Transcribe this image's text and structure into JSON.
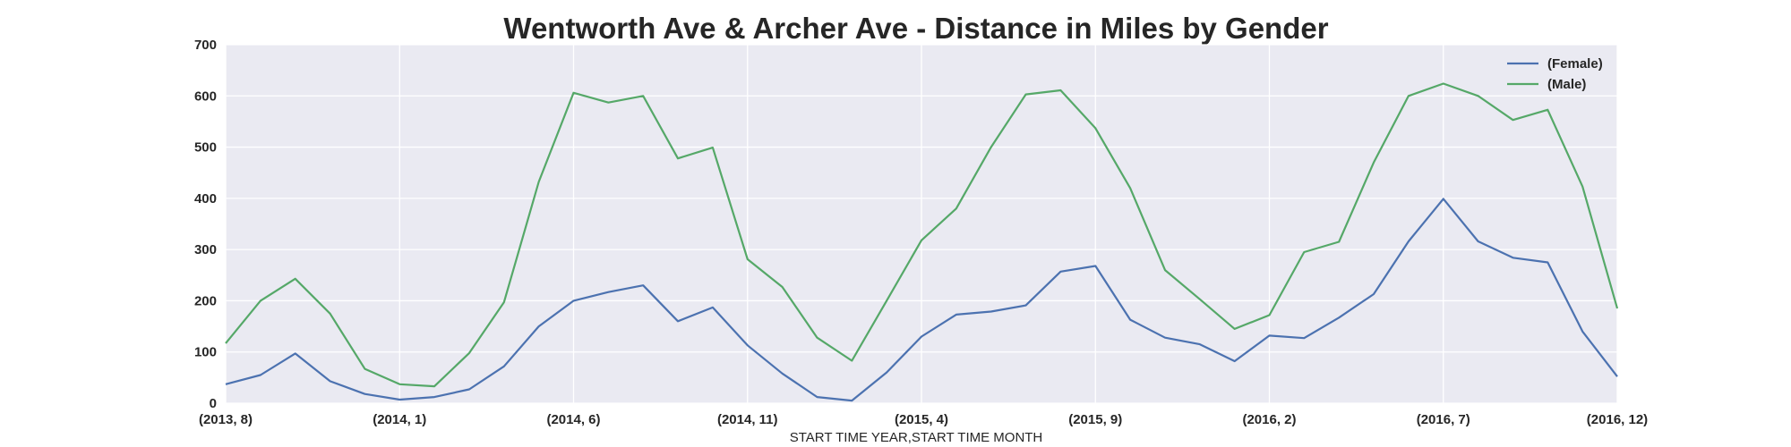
{
  "chart_data": {
    "type": "line",
    "title": "Wentworth Ave & Archer Ave - Distance in Miles by Gender",
    "xlabel": "START TIME YEAR,START TIME MONTH",
    "ylabel": "",
    "ylim": [
      0,
      700
    ],
    "yticks": [
      0,
      100,
      200,
      300,
      400,
      500,
      600,
      700
    ],
    "x": [
      "(2013, 8)",
      "(2013, 9)",
      "(2013, 10)",
      "(2013, 11)",
      "(2013, 12)",
      "(2014, 1)",
      "(2014, 2)",
      "(2014, 3)",
      "(2014, 4)",
      "(2014, 5)",
      "(2014, 6)",
      "(2014, 7)",
      "(2014, 8)",
      "(2014, 9)",
      "(2014, 10)",
      "(2014, 11)",
      "(2014, 12)",
      "(2015, 1)",
      "(2015, 2)",
      "(2015, 3)",
      "(2015, 4)",
      "(2015, 5)",
      "(2015, 6)",
      "(2015, 7)",
      "(2015, 8)",
      "(2015, 9)",
      "(2015, 10)",
      "(2015, 11)",
      "(2015, 12)",
      "(2016, 1)",
      "(2016, 2)",
      "(2016, 3)",
      "(2016, 4)",
      "(2016, 5)",
      "(2016, 6)",
      "(2016, 7)",
      "(2016, 8)",
      "(2016, 9)",
      "(2016, 10)",
      "(2016, 11)",
      "(2016, 12)"
    ],
    "xtick_labels": [
      "(2013, 8)",
      "(2014, 1)",
      "(2014, 6)",
      "(2014, 11)",
      "(2015, 4)",
      "(2015, 9)",
      "(2016, 2)",
      "(2016, 7)",
      "(2016, 12)"
    ],
    "series": [
      {
        "name": "(Female)",
        "color": "#4c72b0",
        "values": [
          37,
          55,
          97,
          43,
          18,
          7,
          12,
          27,
          72,
          150,
          200,
          217,
          230,
          160,
          187,
          113,
          58,
          12,
          5,
          60,
          130,
          173,
          179,
          191,
          257,
          268,
          163,
          128,
          115,
          82,
          132,
          127,
          167,
          213,
          316,
          399,
          316,
          284,
          275,
          140,
          52
        ]
      },
      {
        "name": "(Male)",
        "color": "#55a868",
        "values": [
          117,
          200,
          243,
          175,
          67,
          37,
          33,
          98,
          197,
          432,
          606,
          587,
          600,
          478,
          499,
          281,
          227,
          128,
          83,
          200,
          318,
          380,
          500,
          603,
          611,
          537,
          420,
          260,
          203,
          145,
          172,
          295,
          315,
          470,
          600,
          624,
          600,
          553,
          573,
          423,
          185
        ]
      }
    ],
    "legend_position": "top-right",
    "grid": true
  }
}
